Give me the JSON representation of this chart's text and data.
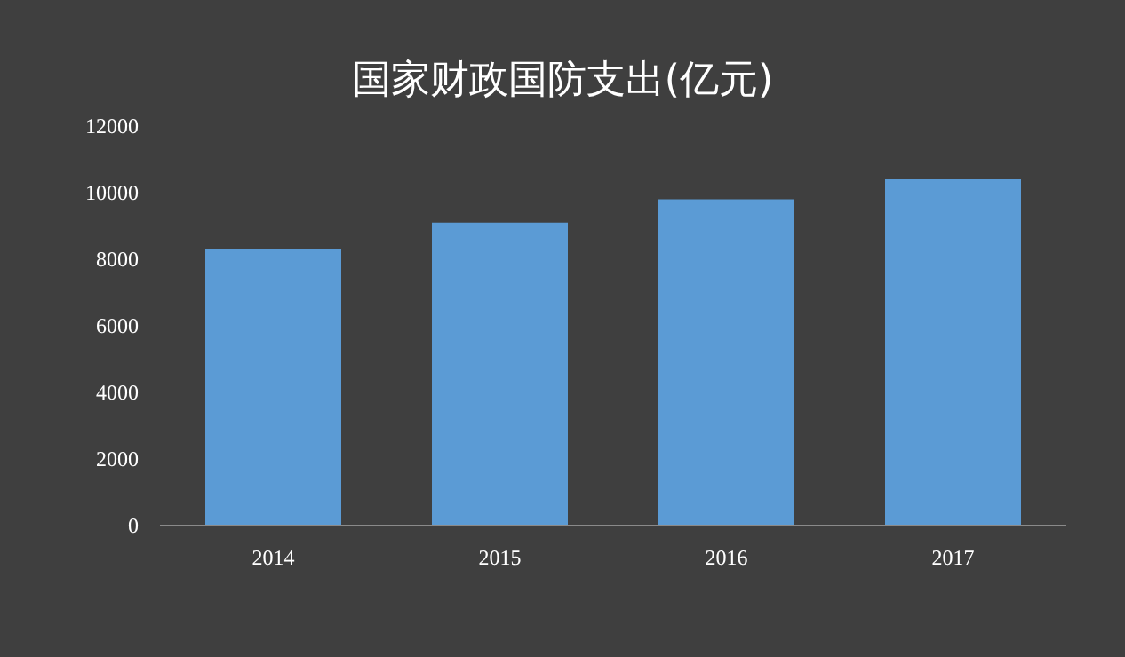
{
  "chart_data": {
    "type": "bar",
    "title": "国家财政国防支出(亿元)",
    "categories": [
      "2014",
      "2015",
      "2016",
      "2017"
    ],
    "values": [
      8300,
      9100,
      9800,
      10400
    ],
    "color": "#5b9bd5",
    "ylim": [
      0,
      12000
    ],
    "yticks": [
      0,
      2000,
      4000,
      6000,
      8000,
      10000,
      12000
    ],
    "grid": false
  }
}
